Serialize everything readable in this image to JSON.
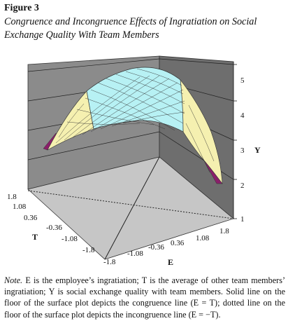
{
  "figure": {
    "label": "Figure 3",
    "title": "Congruence and Incongruence Effects of Ingratiation on Social Exchange Quality With Team Members"
  },
  "note": {
    "label": "Note.",
    "text": "E is the employee’s ingratiation; T is the average of other team members’ ingratiation; Y is social exchange quality with team members. Solid line on the floor of the surface plot depicts the congruence line (E = T); dotted line on the floor of the surface plot depicts the incongruence line (E = −T)."
  },
  "chart_data": {
    "type": "surface3d",
    "x_axis": {
      "label": "E",
      "ticks": [
        "-1.8",
        "-1.08",
        "-0.36",
        "0.36",
        "1.08",
        "1.8"
      ]
    },
    "t_axis": {
      "label": "T",
      "ticks": [
        "1.8",
        "1.08",
        "0.36",
        "-0.36",
        "-1.08",
        "-1.8"
      ]
    },
    "y_axis": {
      "label": "Y",
      "ticks": [
        "1",
        "2",
        "3",
        "4",
        "5"
      ],
      "range": [
        1,
        5
      ]
    },
    "floor_lines": [
      {
        "name": "congruence line (E = T)",
        "style": "solid"
      },
      {
        "name": "incongruence line (E = −T)",
        "style": "dotted"
      }
    ],
    "surface": {
      "shape": "inverted-saddle ridge peaking along E = T",
      "approx_peak_Y": 4.7,
      "grid_values_E": [
        -1.8,
        -1.08,
        -0.36,
        0.36,
        1.08,
        1.8
      ]
    },
    "color_bands": [
      {
        "range": "1-2",
        "color": "#8a1f6a"
      },
      {
        "range": "2-3",
        "color": "#f5f0b0"
      },
      {
        "range": "3-4",
        "color": "#f5f0b0"
      },
      {
        "range": "4-5",
        "color": "#b7f1f4"
      }
    ],
    "wall_color": "#7a7a7a",
    "floor_color": "#c4c4c4"
  }
}
